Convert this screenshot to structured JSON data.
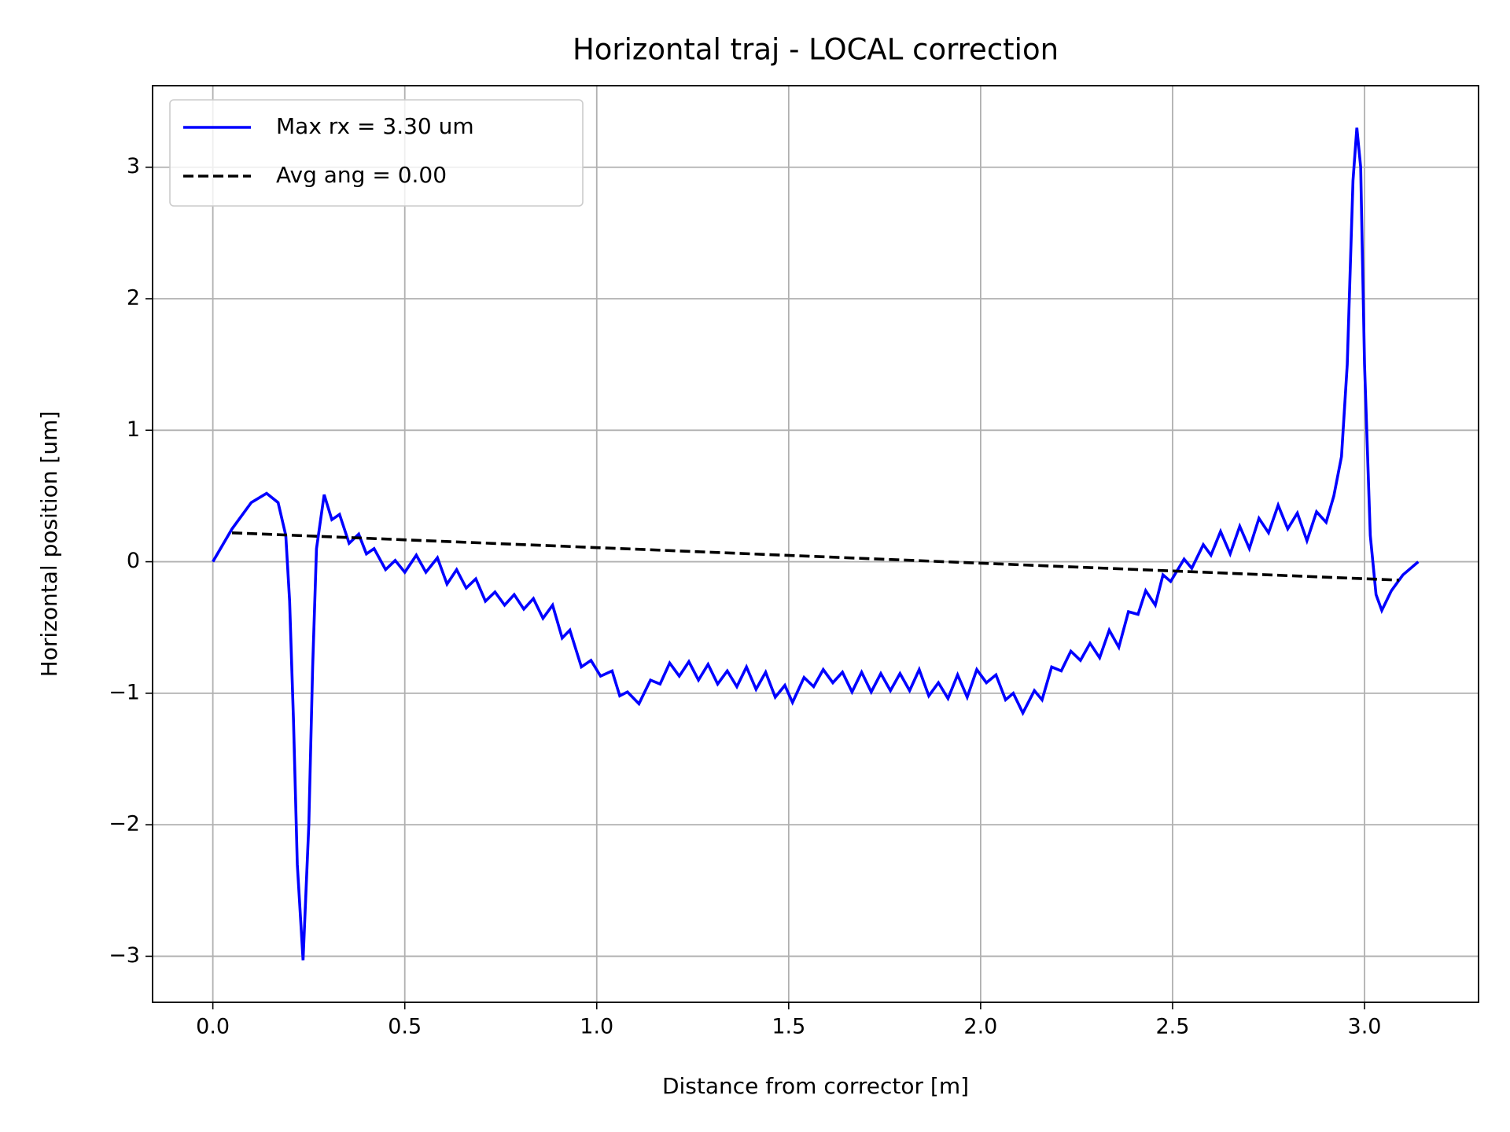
{
  "chart_data": {
    "type": "line",
    "title": "Horizontal traj - LOCAL correction",
    "xlabel": "Distance from corrector [m]",
    "ylabel": "Horizontal position [um]",
    "xlim": [
      -0.157,
      3.297
    ],
    "ylim": [
      -3.35,
      3.62
    ],
    "xticks": [
      {
        "value": 0,
        "label": "0.0"
      },
      0.5,
      {
        "value": 1,
        "label": "1.0"
      },
      1.5,
      {
        "value": 2,
        "label": "2.0"
      },
      2.5,
      {
        "value": 3,
        "label": "3.0"
      }
    ],
    "yticks": [
      {
        "value": -3,
        "label": "−3"
      },
      {
        "value": -2,
        "label": "−2"
      },
      {
        "value": -1,
        "label": "−1"
      },
      0,
      1,
      2,
      3
    ],
    "grid": true,
    "legend": "upper left",
    "series": [
      {
        "name": "Max rx = 3.30 um",
        "color": "#0000ff",
        "dash": "solid",
        "x": [
          0.0,
          0.05,
          0.1,
          0.14,
          0.17,
          0.19,
          0.2,
          0.21,
          0.22,
          0.235,
          0.25,
          0.26,
          0.27,
          0.29,
          0.31,
          0.33,
          0.355,
          0.38,
          0.4,
          0.42,
          0.45,
          0.475,
          0.5,
          0.53,
          0.555,
          0.585,
          0.61,
          0.635,
          0.66,
          0.685,
          0.71,
          0.735,
          0.76,
          0.785,
          0.81,
          0.835,
          0.86,
          0.885,
          0.91,
          0.93,
          0.96,
          0.985,
          1.01,
          1.04,
          1.06,
          1.08,
          1.11,
          1.14,
          1.165,
          1.19,
          1.215,
          1.24,
          1.265,
          1.29,
          1.315,
          1.34,
          1.365,
          1.39,
          1.415,
          1.44,
          1.465,
          1.49,
          1.51,
          1.54,
          1.565,
          1.59,
          1.615,
          1.64,
          1.665,
          1.69,
          1.715,
          1.74,
          1.765,
          1.79,
          1.815,
          1.84,
          1.865,
          1.89,
          1.915,
          1.94,
          1.965,
          1.99,
          2.015,
          2.04,
          2.065,
          2.085,
          2.11,
          2.14,
          2.16,
          2.185,
          2.21,
          2.235,
          2.26,
          2.285,
          2.31,
          2.335,
          2.36,
          2.385,
          2.41,
          2.43,
          2.455,
          2.475,
          2.495,
          2.53,
          2.55,
          2.58,
          2.6,
          2.625,
          2.65,
          2.675,
          2.7,
          2.725,
          2.75,
          2.775,
          2.8,
          2.825,
          2.85,
          2.875,
          2.9,
          2.92,
          2.94,
          2.955,
          2.97,
          2.98,
          2.99,
          3.0,
          3.015,
          3.03,
          3.045,
          3.07,
          3.1,
          3.14
        ],
        "values": [
          0.0,
          0.25,
          0.45,
          0.52,
          0.45,
          0.2,
          -0.3,
          -1.2,
          -2.3,
          -3.03,
          -2.0,
          -0.8,
          0.1,
          0.51,
          0.32,
          0.36,
          0.14,
          0.21,
          0.06,
          0.1,
          -0.06,
          0.01,
          -0.08,
          0.05,
          -0.08,
          0.03,
          -0.17,
          -0.06,
          -0.2,
          -0.13,
          -0.3,
          -0.23,
          -0.33,
          -0.25,
          -0.36,
          -0.28,
          -0.43,
          -0.33,
          -0.58,
          -0.52,
          -0.8,
          -0.75,
          -0.87,
          -0.83,
          -1.02,
          -0.99,
          -1.08,
          -0.9,
          -0.93,
          -0.77,
          -0.87,
          -0.76,
          -0.9,
          -0.78,
          -0.93,
          -0.83,
          -0.95,
          -0.8,
          -0.97,
          -0.84,
          -1.03,
          -0.94,
          -1.07,
          -0.88,
          -0.95,
          -0.82,
          -0.92,
          -0.84,
          -0.99,
          -0.84,
          -0.99,
          -0.85,
          -0.98,
          -0.85,
          -0.98,
          -0.82,
          -1.02,
          -0.92,
          -1.04,
          -0.86,
          -1.03,
          -0.82,
          -0.92,
          -0.86,
          -1.05,
          -1.0,
          -1.15,
          -0.98,
          -1.05,
          -0.8,
          -0.83,
          -0.68,
          -0.75,
          -0.62,
          -0.73,
          -0.52,
          -0.65,
          -0.38,
          -0.4,
          -0.22,
          -0.33,
          -0.1,
          -0.15,
          0.02,
          -0.05,
          0.13,
          0.05,
          0.23,
          0.06,
          0.27,
          0.1,
          0.33,
          0.22,
          0.43,
          0.25,
          0.37,
          0.16,
          0.38,
          0.3,
          0.5,
          0.8,
          1.5,
          2.9,
          3.3,
          3.0,
          1.5,
          0.2,
          -0.25,
          -0.37,
          -0.22,
          -0.1,
          0.0
        ]
      },
      {
        "name": "Avg ang = 0.00",
        "color": "#000000",
        "dash": "dashed",
        "x": [
          0.05,
          3.09
        ],
        "values": [
          0.22,
          -0.14
        ]
      }
    ]
  }
}
